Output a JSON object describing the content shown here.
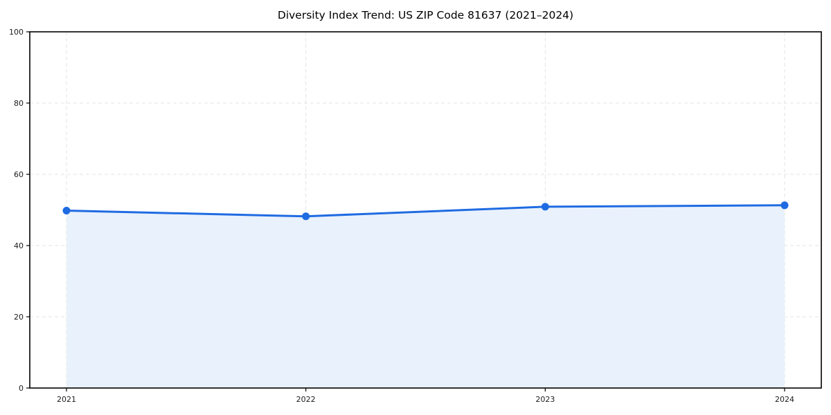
{
  "chart_data": {
    "type": "area",
    "title": "Diversity Index Trend: US ZIP Code 81637 (2021–2024)",
    "xlabel": "",
    "ylabel": "",
    "x": [
      "2021",
      "2022",
      "2023",
      "2024"
    ],
    "series": [
      {
        "name": "Diversity Index",
        "values": [
          49.8,
          48.2,
          50.9,
          51.3
        ]
      }
    ],
    "ylim": [
      0,
      100
    ],
    "yticks": [
      0,
      20,
      40,
      60,
      80,
      100
    ],
    "grid": true,
    "grid_style": "dashed",
    "legend": false,
    "marker": "circle",
    "colors": {
      "line": "#1f6be2",
      "marker": "#1f6be2",
      "area_fill": "#e9f1fc",
      "grid": "#e3e3e3",
      "axis": "#000000",
      "tick_text": "#1a1a1a"
    }
  }
}
